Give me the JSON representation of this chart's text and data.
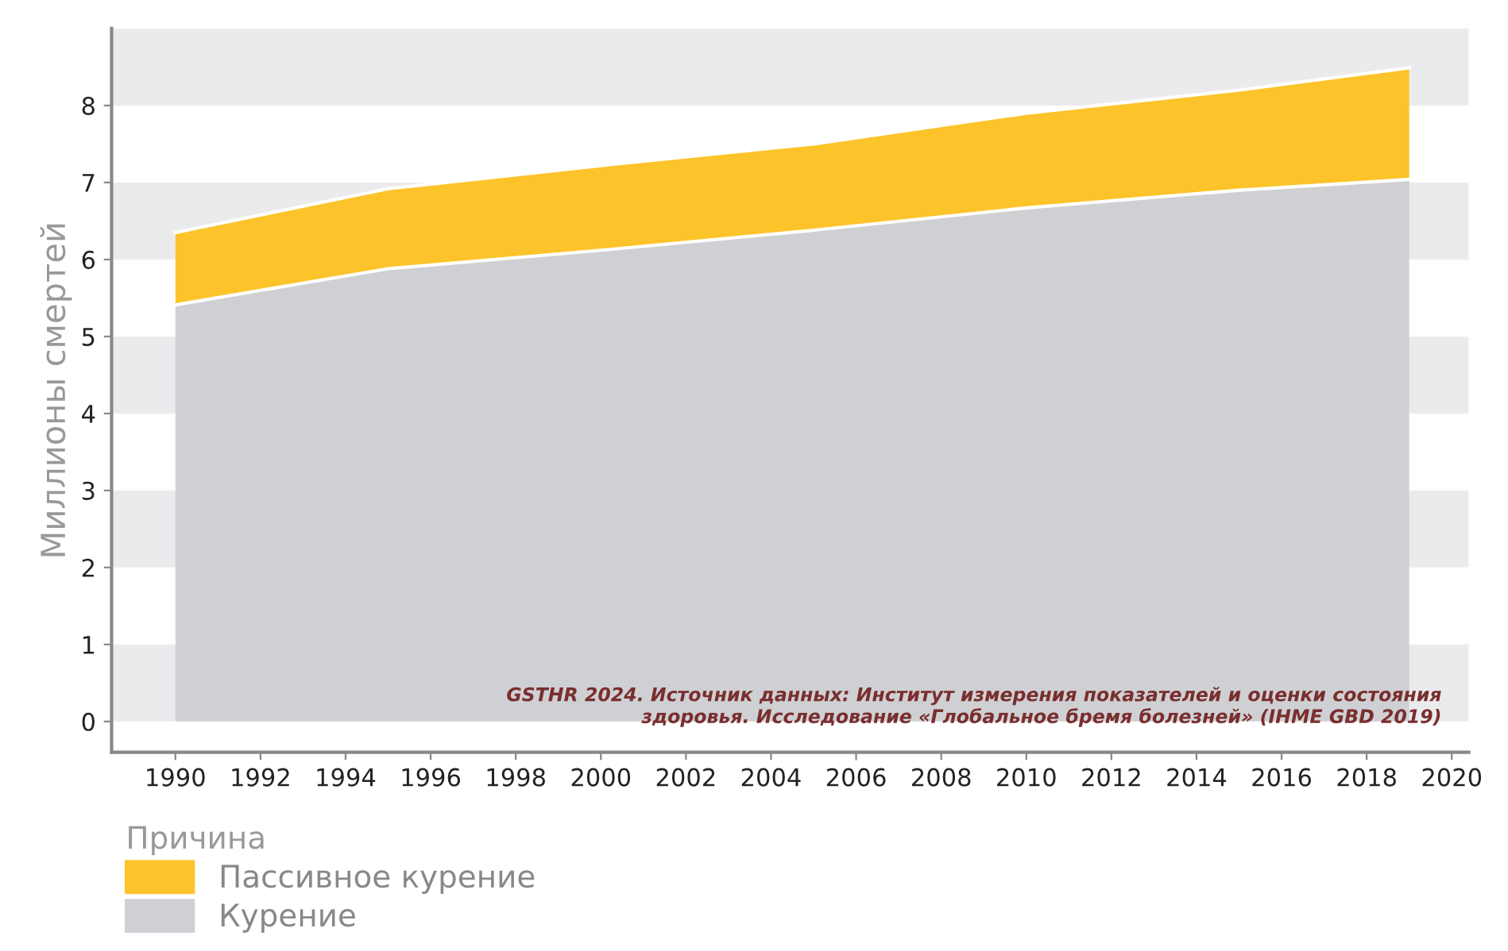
{
  "chart_data": {
    "type": "area",
    "stacked": true,
    "ylabel": "Миллионы смертей",
    "legend_title": "Причина",
    "legend": "bottom left",
    "x": [
      1990,
      1995,
      2000,
      2005,
      2010,
      2015,
      2019
    ],
    "series": [
      {
        "name": "Курение",
        "color": "#cfd0d3",
        "values": [
          5.41,
          5.88,
          6.12,
          6.38,
          6.67,
          6.9,
          7.04
        ]
      },
      {
        "name": "Пассивное курение",
        "color": "#fcc42a",
        "values": [
          0.94,
          1.04,
          1.1,
          1.12,
          1.23,
          1.3,
          1.45
        ]
      }
    ],
    "xlim": [
      1988.5,
      2020.4
    ],
    "xticks": [
      1990,
      1992,
      1994,
      1996,
      1998,
      2000,
      2002,
      2004,
      2006,
      2008,
      2010,
      2012,
      2014,
      2016,
      2018,
      2020
    ],
    "ylim": [
      -0.4,
      9
    ],
    "yticks": [
      0,
      1,
      2,
      3,
      4,
      5,
      6,
      7,
      8
    ],
    "bands": [
      {
        "axis": "y",
        "from": 0,
        "to": 1,
        "color": "#ebebed"
      },
      {
        "axis": "y",
        "from": 2,
        "to": 3,
        "color": "#ebebed"
      },
      {
        "axis": "y",
        "from": 4,
        "to": 5,
        "color": "#ebebed"
      },
      {
        "axis": "y",
        "from": 6,
        "to": 7,
        "color": "#ebebed"
      },
      {
        "axis": "y",
        "from": 8,
        "to": 9,
        "color": "#ebebed"
      }
    ],
    "annotations": [
      "GSTHR 2024. Источник данных: Институт измерения показателей и оценки состояния\nздоровья. Исследование «Глобальное бремя болезней» (IHME GBD 2019)"
    ]
  }
}
